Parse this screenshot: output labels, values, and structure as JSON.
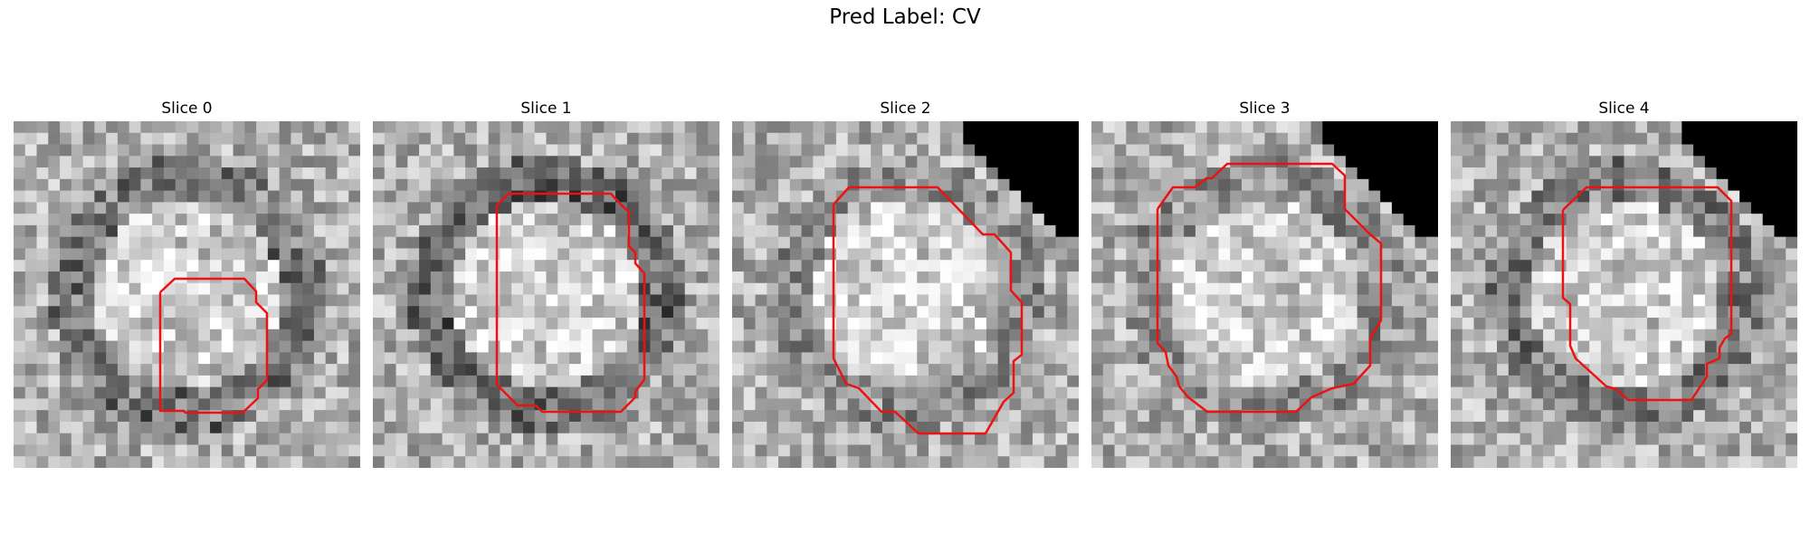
{
  "figure": {
    "title": "Pred Label: CV"
  },
  "contour_color": "#ee1111",
  "panels": [
    {
      "title": "Slice 0",
      "seed": 11,
      "ring": 0.65,
      "mask": false
    },
    {
      "title": "Slice 1",
      "seed": 23,
      "ring": 0.75,
      "mask": false
    },
    {
      "title": "Slice 2",
      "seed": 37,
      "ring": 0.35,
      "mask": true
    },
    {
      "title": "Slice 3",
      "seed": 41,
      "ring": 0.35,
      "mask": true
    },
    {
      "title": "Slice 4",
      "seed": 53,
      "ring": 0.55,
      "mask": true
    }
  ]
}
